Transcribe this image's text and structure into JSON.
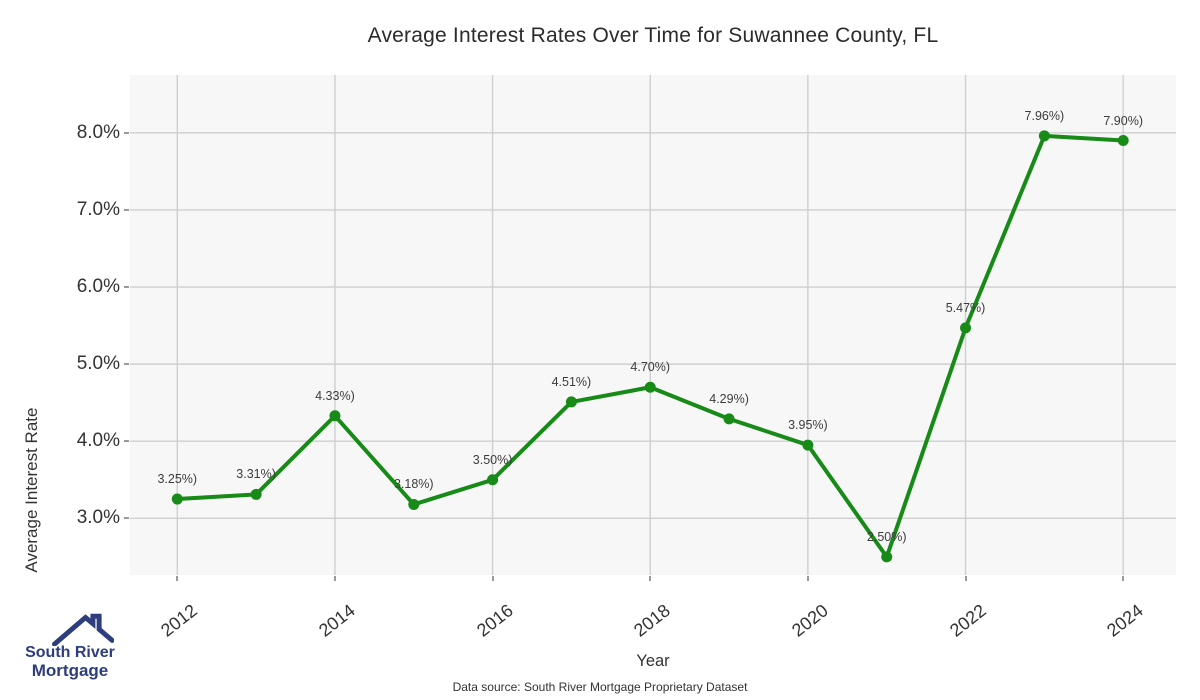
{
  "title": "Average Interest Rates Over Time for Suwannee County, FL",
  "footer": {
    "data_source": "Data source: South River Mortgage Proprietary Dataset"
  },
  "logo": {
    "line1": "South River",
    "line2": "Mortgage",
    "color": "#2e3d7d"
  },
  "chart_data": {
    "type": "line",
    "title": "Average Interest Rates Over Time for Suwannee County, FL",
    "xlabel": "Year",
    "ylabel": "Average Interest Rate",
    "x": [
      2012,
      2013,
      2014,
      2015,
      2016,
      2017,
      2018,
      2019,
      2020,
      2021,
      2022,
      2023,
      2024
    ],
    "values": [
      3.25,
      3.31,
      4.33,
      3.18,
      3.5,
      4.51,
      4.7,
      4.29,
      3.95,
      2.5,
      5.47,
      7.96,
      7.9
    ],
    "point_labels": [
      "3.25%)",
      "3.31%)",
      "4.33%)",
      "3.18%)",
      "3.50%)",
      "4.51%)",
      "4.70%)",
      "4.29%)",
      "3.95%)",
      "2.50%)",
      "5.47%)",
      "7.96%)",
      "7.90%)"
    ],
    "x_ticks": [
      2012,
      2014,
      2016,
      2018,
      2020,
      2022,
      2024
    ],
    "x_tick_labels": [
      "2012",
      "2014",
      "2016",
      "2018",
      "2020",
      "2022",
      "2024"
    ],
    "y_ticks": [
      3,
      4,
      5,
      6,
      7,
      8
    ],
    "y_tick_labels": [
      "3.0%",
      "4.0%",
      "5.0%",
      "6.0%",
      "7.0%",
      "8.0%"
    ],
    "x_domain": [
      2011.4,
      2024.67
    ],
    "y_domain": [
      2.265,
      8.75
    ],
    "grid": true,
    "legend": "none",
    "line_color": "#178a17",
    "point_color": "#178a17",
    "plot_bg": "#f7f7f7",
    "grid_color": "#cfcfcf"
  }
}
